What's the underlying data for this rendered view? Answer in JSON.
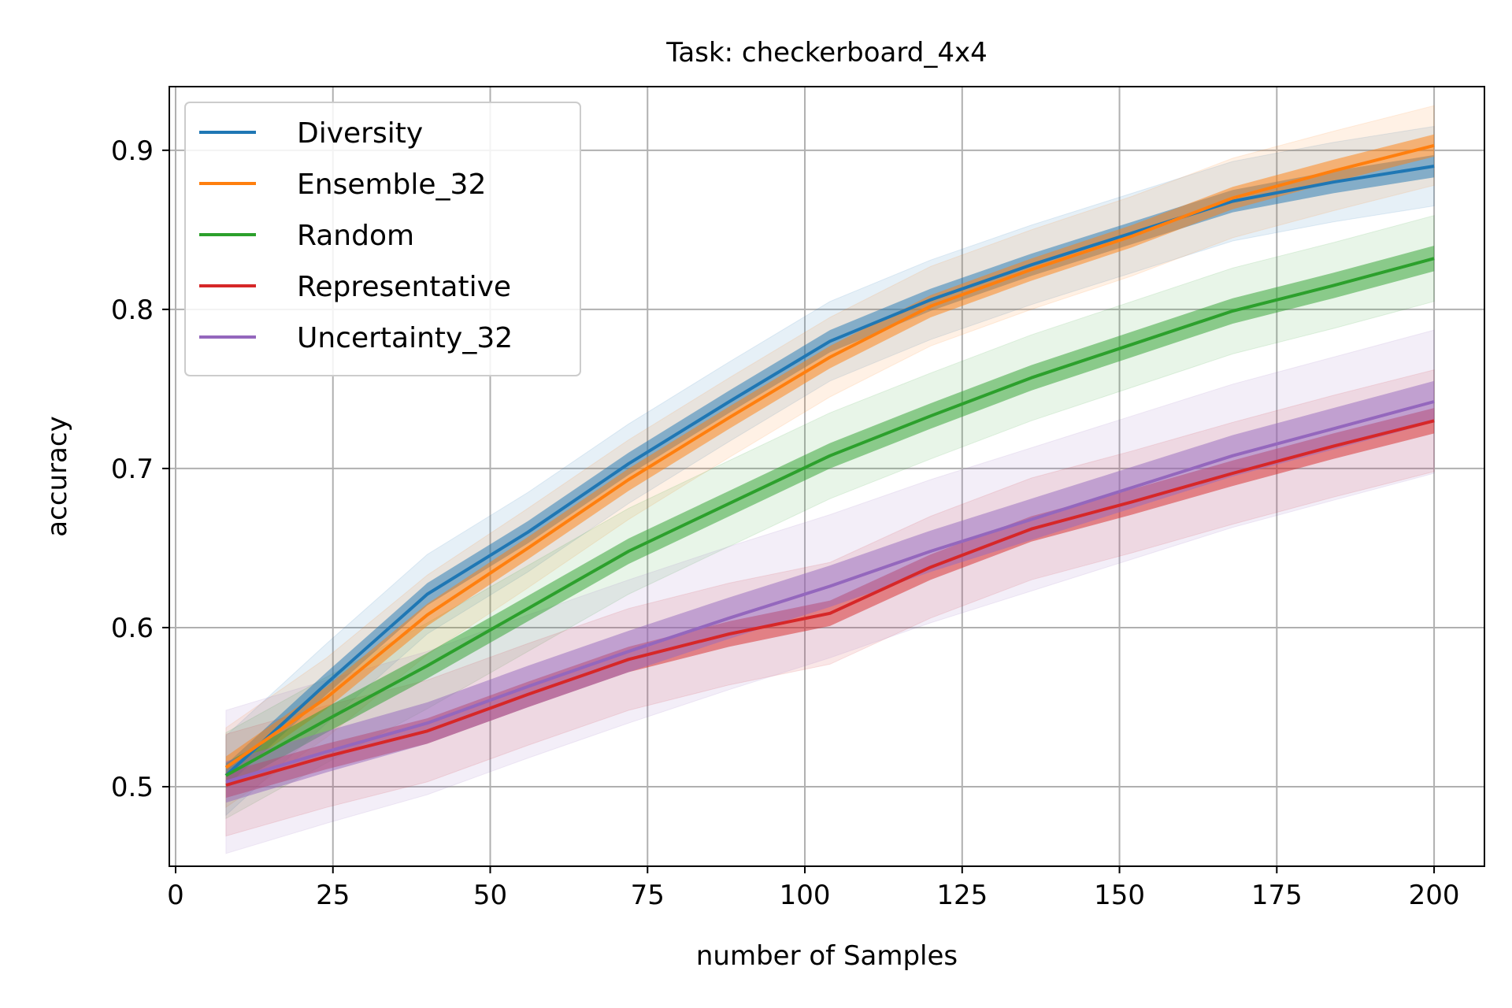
{
  "chart_data": {
    "type": "line",
    "title": "Task: checkerboard_4x4",
    "xlabel": "number of Samples",
    "ylabel": "accuracy",
    "xlim": [
      -1,
      208
    ],
    "ylim": [
      0.45,
      0.94
    ],
    "xticks": [
      0,
      25,
      50,
      75,
      100,
      125,
      150,
      175,
      200
    ],
    "xtick_labels": [
      "0",
      "25",
      "50",
      "75",
      "100",
      "125",
      "150",
      "175",
      "200"
    ],
    "yticks": [
      0.5,
      0.6,
      0.7,
      0.8,
      0.9
    ],
    "ytick_labels": [
      "0.5",
      "0.6",
      "0.7",
      "0.8",
      "0.9"
    ],
    "grid": true,
    "legend_position": "top-left",
    "x": [
      8,
      24,
      40,
      56,
      72,
      88,
      104,
      120,
      136,
      152,
      168,
      184,
      200
    ],
    "series": [
      {
        "name": "Diversity",
        "color": "#1f77b4",
        "values": [
          0.507,
          0.565,
          0.621,
          0.66,
          0.703,
          0.742,
          0.78,
          0.806,
          0.828,
          0.848,
          0.868,
          0.88,
          0.89
        ],
        "inner": 0.007,
        "outer": 0.025
      },
      {
        "name": "Ensemble_32",
        "color": "#ff7f0e",
        "values": [
          0.512,
          0.556,
          0.608,
          0.65,
          0.693,
          0.732,
          0.77,
          0.802,
          0.825,
          0.846,
          0.87,
          0.887,
          0.903
        ],
        "inner": 0.007,
        "outer": 0.025
      },
      {
        "name": "Random",
        "color": "#2ca02c",
        "values": [
          0.507,
          0.542,
          0.576,
          0.612,
          0.648,
          0.678,
          0.708,
          0.733,
          0.757,
          0.778,
          0.799,
          0.815,
          0.832
        ],
        "inner": 0.008,
        "outer": 0.027
      },
      {
        "name": "Representative",
        "color": "#d62728",
        "values": [
          0.501,
          0.519,
          0.535,
          0.558,
          0.58,
          0.596,
          0.609,
          0.638,
          0.662,
          0.679,
          0.697,
          0.714,
          0.73
        ],
        "inner": 0.008,
        "outer": 0.032
      },
      {
        "name": "Uncertainty_32",
        "color": "#9467bd",
        "values": [
          0.503,
          0.522,
          0.54,
          0.563,
          0.585,
          0.606,
          0.626,
          0.648,
          0.668,
          0.688,
          0.708,
          0.725,
          0.742
        ],
        "inner": 0.013,
        "outer": 0.045
      }
    ]
  }
}
